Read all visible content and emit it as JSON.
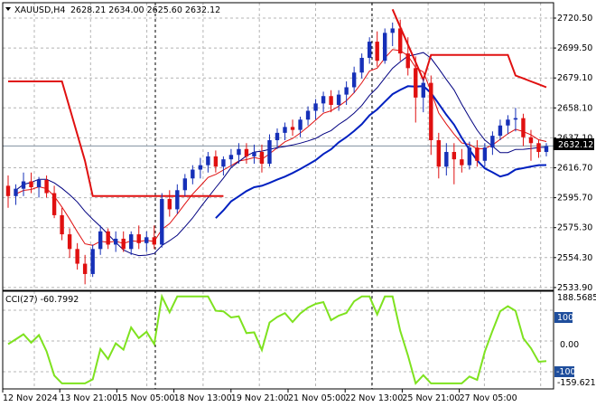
{
  "window": {
    "collapse_icon": "triangle-down-icon",
    "symbol": "XAUUSD,H4",
    "ohlc": "2628.21 2634.00 2625.60 2632.12"
  },
  "price_axis": {
    "labels": [
      "2720.50",
      "2699.50",
      "2679.10",
      "2658.10",
      "2637.10",
      "2616.70",
      "2595.70",
      "2575.30",
      "2554.30",
      "2533.90"
    ],
    "current_price": "2632.12",
    "current_price_color": "#000000"
  },
  "time_axis": {
    "labels": [
      "12 Nov 2024",
      "13 Nov 21:00",
      "15 Nov 05:00",
      "18 Nov 13:00",
      "19 Nov 21:00",
      "21 Nov 05:00",
      "22 Nov 13:00",
      "25 Nov 21:00",
      "27 Nov 05:00"
    ]
  },
  "indicator": {
    "label": "CCI(27) -60.7992",
    "max_label": "188.5685",
    "min_label": "-159.6215",
    "levels": [
      "100",
      "0.00",
      "-100"
    ],
    "level_tag_color": "#1f4e9c",
    "line_color": "#7ee21f"
  },
  "colors": {
    "bull": "#1630b8",
    "bear": "#e01010",
    "trail_stop": "#e01010",
    "upper_band": "#000080",
    "lower_band": "#0020c0",
    "ma": "#e01010",
    "grid": "#b4b4b4"
  },
  "chart_data": {
    "type": "candlestick",
    "title": "XAUUSD,H4",
    "ylim": [
      2533.9,
      2729.5
    ],
    "x_ticks": [
      "12 Nov 2024",
      "13 Nov 21:00",
      "15 Nov 05:00",
      "18 Nov 13:00",
      "19 Nov 21:00",
      "21 Nov 05:00",
      "22 Nov 13:00",
      "25 Nov 21:00",
      "27 Nov 05:00"
    ],
    "candles": [
      [
        2605,
        2612,
        2590,
        2598
      ],
      [
        2598,
        2606,
        2592,
        2603
      ],
      [
        2603,
        2614,
        2598,
        2608
      ],
      [
        2608,
        2614,
        2600,
        2604
      ],
      [
        2604,
        2611,
        2597,
        2609
      ],
      [
        2609,
        2612,
        2597,
        2600
      ],
      [
        2600,
        2605,
        2583,
        2585
      ],
      [
        2585,
        2590,
        2568,
        2572
      ],
      [
        2572,
        2576,
        2556,
        2562
      ],
      [
        2562,
        2566,
        2548,
        2552
      ],
      [
        2552,
        2558,
        2538,
        2545
      ],
      [
        2545,
        2565,
        2543,
        2562
      ],
      [
        2562,
        2578,
        2558,
        2574
      ],
      [
        2574,
        2576,
        2562,
        2565
      ],
      [
        2565,
        2574,
        2560,
        2569
      ],
      [
        2569,
        2574,
        2560,
        2562
      ],
      [
        2562,
        2574,
        2558,
        2572
      ],
      [
        2572,
        2578,
        2562,
        2566
      ],
      [
        2566,
        2574,
        2560,
        2570
      ],
      [
        2570,
        2578,
        2562,
        2565
      ],
      [
        2565,
        2600,
        2563,
        2596
      ],
      [
        2596,
        2602,
        2584,
        2589
      ],
      [
        2589,
        2606,
        2586,
        2602
      ],
      [
        2602,
        2613,
        2598,
        2610
      ],
      [
        2610,
        2619,
        2606,
        2616
      ],
      [
        2616,
        2624,
        2610,
        2619
      ],
      [
        2619,
        2628,
        2614,
        2625
      ],
      [
        2625,
        2629,
        2614,
        2618
      ],
      [
        2618,
        2625,
        2612,
        2623
      ],
      [
        2623,
        2630,
        2618,
        2626
      ],
      [
        2626,
        2634,
        2620,
        2630
      ],
      [
        2630,
        2634,
        2620,
        2625
      ],
      [
        2625,
        2633,
        2620,
        2628
      ],
      [
        2628,
        2633,
        2614,
        2620
      ],
      [
        2620,
        2640,
        2618,
        2636
      ],
      [
        2636,
        2644,
        2630,
        2641
      ],
      [
        2641,
        2648,
        2636,
        2645
      ],
      [
        2645,
        2650,
        2639,
        2643
      ],
      [
        2643,
        2652,
        2638,
        2650
      ],
      [
        2650,
        2659,
        2646,
        2656
      ],
      [
        2656,
        2664,
        2650,
        2661
      ],
      [
        2661,
        2669,
        2655,
        2666
      ],
      [
        2666,
        2670,
        2655,
        2660
      ],
      [
        2660,
        2670,
        2656,
        2667
      ],
      [
        2667,
        2676,
        2660,
        2672
      ],
      [
        2672,
        2686,
        2668,
        2682
      ],
      [
        2682,
        2695,
        2678,
        2692
      ],
      [
        2692,
        2706,
        2688,
        2703
      ],
      [
        2703,
        2710,
        2686,
        2690
      ],
      [
        2690,
        2712,
        2688,
        2709
      ],
      [
        2709,
        2716,
        2700,
        2712
      ],
      [
        2712,
        2718,
        2690,
        2695
      ],
      [
        2695,
        2706,
        2680,
        2685
      ],
      [
        2685,
        2693,
        2648,
        2665
      ],
      [
        2665,
        2678,
        2655,
        2675
      ],
      [
        2675,
        2680,
        2626,
        2636
      ],
      [
        2636,
        2641,
        2610,
        2618
      ],
      [
        2618,
        2634,
        2612,
        2628
      ],
      [
        2628,
        2634,
        2606,
        2623
      ],
      [
        2623,
        2630,
        2614,
        2619
      ],
      [
        2619,
        2635,
        2616,
        2631
      ],
      [
        2631,
        2636,
        2618,
        2622
      ],
      [
        2622,
        2634,
        2618,
        2631
      ],
      [
        2631,
        2642,
        2626,
        2639
      ],
      [
        2639,
        2650,
        2636,
        2646
      ],
      [
        2646,
        2653,
        2640,
        2650
      ],
      [
        2650,
        2658,
        2642,
        2651
      ],
      [
        2651,
        2654,
        2632,
        2638
      ],
      [
        2638,
        2643,
        2622,
        2634
      ],
      [
        2634,
        2636,
        2624,
        2628
      ],
      [
        2628,
        2634,
        2625,
        2632
      ]
    ],
    "cci_levels": [
      100,
      0,
      -100
    ],
    "cci_range": [
      -159.6215,
      188.5685
    ],
    "cci_last": -60.7992
  }
}
